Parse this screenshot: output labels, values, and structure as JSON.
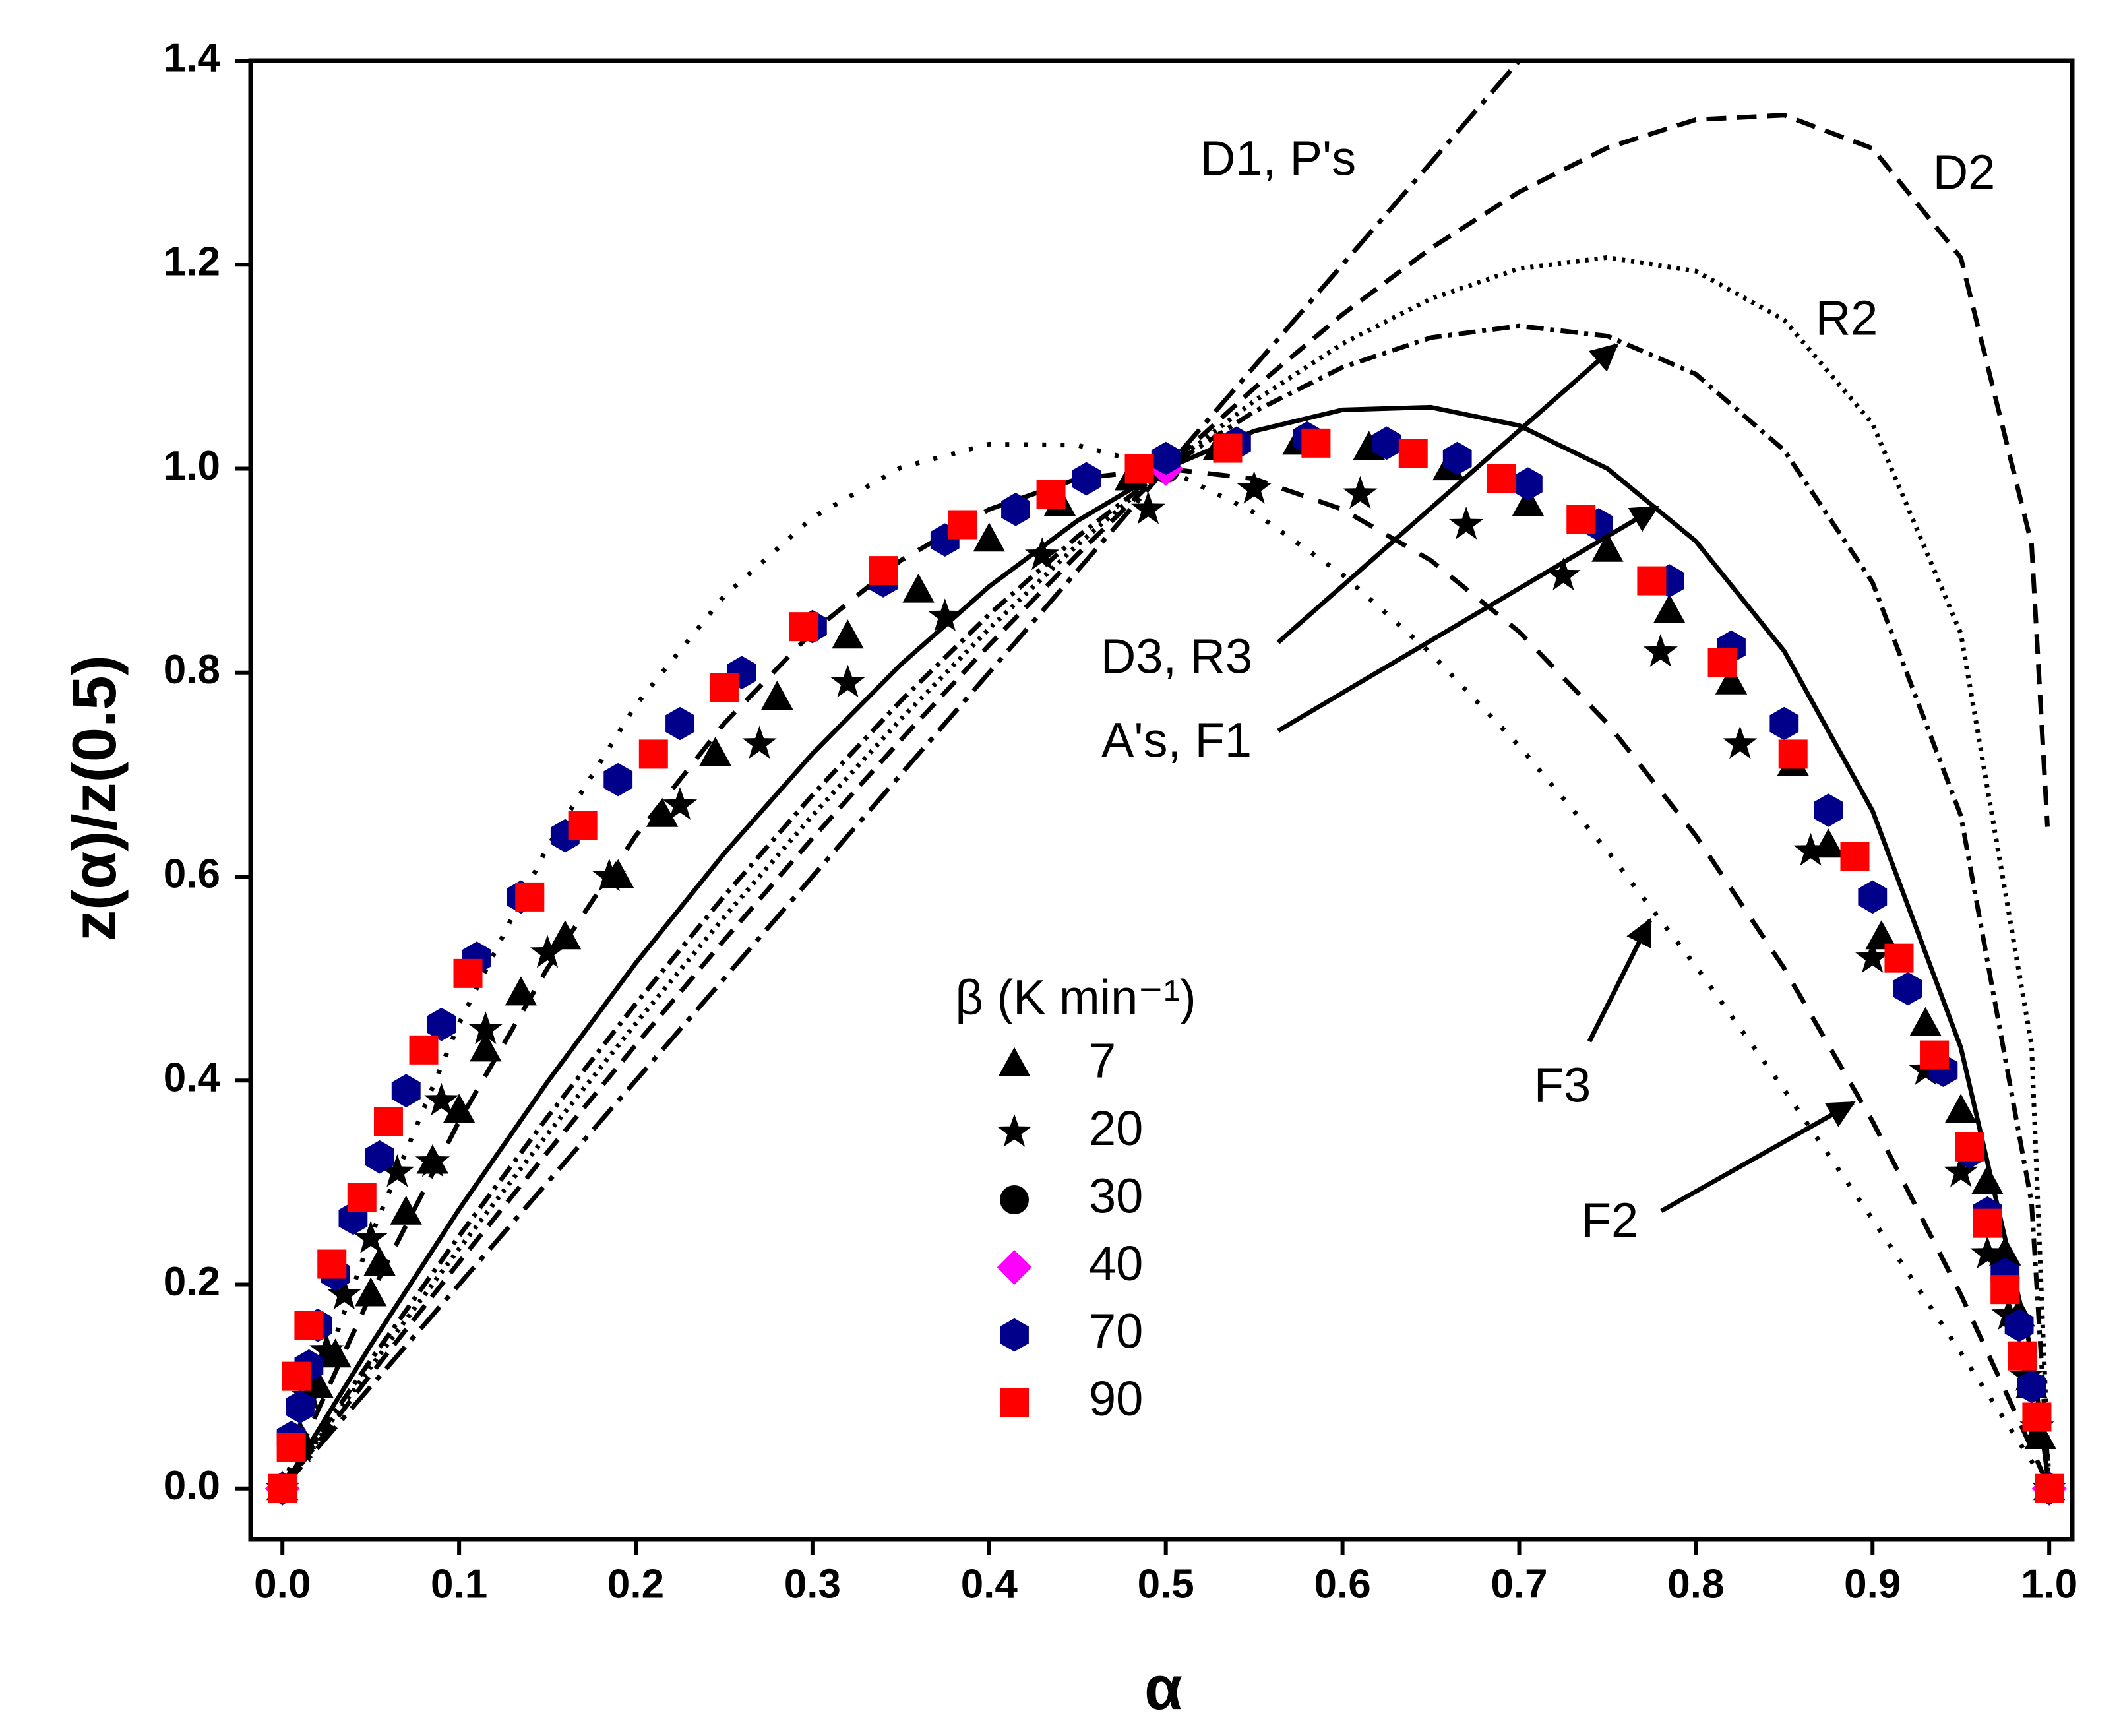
{
  "chart_data": {
    "type": "scatter",
    "xlabel": "α",
    "ylabel": "z(α)/z(0.5)",
    "legend_title": "β (K min⁻¹)",
    "xlim": [
      -0.018,
      1.013
    ],
    "ylim": [
      -0.05,
      1.4
    ],
    "xticks": [
      {
        "value": 0,
        "label": "0.0"
      },
      0.1,
      0.2,
      0.3,
      0.4,
      0.5,
      0.6,
      0.7,
      0.8,
      0.9,
      {
        "value": 1,
        "label": "1.0"
      }
    ],
    "yticks": [
      {
        "value": 0,
        "label": "0.0"
      },
      0.2,
      0.4,
      0.6,
      0.8,
      {
        "value": 1,
        "label": "1.0"
      },
      1.2,
      1.4
    ],
    "series": [
      {
        "name": "7",
        "color": "#000000",
        "marker": "triangle",
        "x": [
          0,
          0.01,
          0.02,
          0.03,
          0.05,
          0.055,
          0.07,
          0.085,
          0.1,
          0.115,
          0.135,
          0.16,
          0.19,
          0.215,
          0.245,
          0.28,
          0.32,
          0.36,
          0.4,
          0.44,
          0.48,
          0.53,
          0.575,
          0.615,
          0.66,
          0.705,
          0.75,
          0.785,
          0.82,
          0.855,
          0.875,
          0.905,
          0.93,
          0.95,
          0.965,
          0.975,
          0.983,
          0.99,
          0.995,
          1
        ],
        "values": [
          0,
          0.05,
          0.1,
          0.13,
          0.19,
          0.22,
          0.27,
          0.32,
          0.37,
          0.43,
          0.485,
          0.54,
          0.6,
          0.66,
          0.72,
          0.775,
          0.835,
          0.88,
          0.93,
          0.965,
          0.99,
          1.02,
          1.025,
          1.02,
          1.0,
          0.965,
          0.92,
          0.86,
          0.79,
          0.71,
          0.63,
          0.54,
          0.455,
          0.37,
          0.3,
          0.23,
          0.17,
          0.1,
          0.05,
          0
        ]
      },
      {
        "name": "20",
        "color": "#000000",
        "marker": "star",
        "x": [
          0,
          0.01,
          0.015,
          0.025,
          0.035,
          0.05,
          0.065,
          0.085,
          0.09,
          0.115,
          0.15,
          0.185,
          0.225,
          0.27,
          0.32,
          0.375,
          0.43,
          0.49,
          0.55,
          0.61,
          0.67,
          0.725,
          0.78,
          0.825,
          0.865,
          0.9,
          0.93,
          0.95,
          0.965,
          0.977,
          0.987,
          0.993,
          1
        ],
        "values": [
          0,
          0.04,
          0.09,
          0.135,
          0.19,
          0.245,
          0.31,
          0.32,
          0.38,
          0.45,
          0.525,
          0.6,
          0.67,
          0.73,
          0.79,
          0.855,
          0.915,
          0.96,
          0.98,
          0.975,
          0.945,
          0.895,
          0.82,
          0.73,
          0.625,
          0.52,
          0.41,
          0.31,
          0.23,
          0.17,
          0.11,
          0.06,
          0
        ]
      },
      {
        "name": "30",
        "color": "#000000",
        "marker": "circle",
        "x": [
          0,
          0.5,
          1
        ],
        "values": [
          0,
          1,
          0
        ]
      },
      {
        "name": "40",
        "color": "#ff00ff",
        "marker": "diamond",
        "x": [
          0,
          0.5,
          1
        ],
        "values": [
          0,
          1,
          0
        ]
      },
      {
        "name": "70",
        "color": "#00008b",
        "marker": "hexagon",
        "x": [
          0,
          0.005,
          0.01,
          0.015,
          0.02,
          0.03,
          0.04,
          0.055,
          0.07,
          0.09,
          0.11,
          0.135,
          0.16,
          0.19,
          0.225,
          0.26,
          0.3,
          0.34,
          0.375,
          0.415,
          0.455,
          0.5,
          0.54,
          0.58,
          0.625,
          0.665,
          0.705,
          0.745,
          0.785,
          0.82,
          0.85,
          0.875,
          0.9,
          0.92,
          0.94,
          0.955,
          0.965,
          0.975,
          0.983,
          0.99,
          1
        ],
        "values": [
          0,
          0.05,
          0.08,
          0.12,
          0.16,
          0.21,
          0.265,
          0.325,
          0.39,
          0.455,
          0.52,
          0.58,
          0.64,
          0.695,
          0.75,
          0.8,
          0.845,
          0.89,
          0.93,
          0.96,
          0.99,
          1.01,
          1.025,
          1.03,
          1.025,
          1.01,
          0.985,
          0.945,
          0.89,
          0.825,
          0.75,
          0.665,
          0.58,
          0.49,
          0.41,
          0.33,
          0.27,
          0.21,
          0.16,
          0.1,
          0
        ]
      },
      {
        "name": "90",
        "color": "#ff0000",
        "marker": "square",
        "x": [
          0,
          0.005,
          0.008,
          0.015,
          0.028,
          0.045,
          0.06,
          0.08,
          0.105,
          0.14,
          0.17,
          0.21,
          0.25,
          0.295,
          0.34,
          0.385,
          0.435,
          0.485,
          0.535,
          0.585,
          0.64,
          0.69,
          0.735,
          0.775,
          0.815,
          0.855,
          0.89,
          0.915,
          0.935,
          0.955,
          0.965,
          0.975,
          0.985,
          0.993,
          1
        ],
        "values": [
          0,
          0.04,
          0.11,
          0.16,
          0.22,
          0.285,
          0.36,
          0.43,
          0.505,
          0.58,
          0.65,
          0.72,
          0.785,
          0.845,
          0.9,
          0.945,
          0.975,
          1.0,
          1.02,
          1.025,
          1.015,
          0.99,
          0.95,
          0.89,
          0.81,
          0.72,
          0.62,
          0.52,
          0.425,
          0.335,
          0.26,
          0.195,
          0.13,
          0.07,
          0
        ]
      }
    ],
    "curves": [
      {
        "label": "D1, P's",
        "color": "#000000",
        "dash": "44 14 8 14",
        "x": [
          0,
          0.7
        ],
        "values": [
          0,
          1.4
        ]
      },
      {
        "label": "D2",
        "color": "#000000",
        "dash": "30 16",
        "x": [
          0,
          0.05,
          0.1,
          0.15,
          0.2,
          0.25,
          0.3,
          0.35,
          0.4,
          0.45,
          0.5,
          0.55,
          0.6,
          0.65,
          0.7,
          0.75,
          0.8,
          0.85,
          0.9,
          0.95,
          0.99,
          0.999
        ],
        "values": [
          0,
          0.1119,
          0.2219,
          0.3297,
          0.435,
          0.5377,
          0.6375,
          0.734,
          0.827,
          0.9158,
          1,
          1.0788,
          1.1512,
          1.216,
          1.2713,
          1.3147,
          1.3421,
          1.3465,
          1.314,
          1.2068,
          0.926,
          0.6488
        ]
      },
      {
        "label": "R2",
        "color": "#000000",
        "dash": "5 9",
        "x": [
          0,
          0.05,
          0.1,
          0.15,
          0.2,
          0.25,
          0.3,
          0.35,
          0.4,
          0.45,
          0.5,
          0.55,
          0.6,
          0.65,
          0.7,
          0.75,
          0.8,
          0.85,
          0.9,
          0.95,
          0.99,
          1
        ],
        "values": [
          0,
          0.1192,
          0.2351,
          0.3474,
          0.4559,
          0.5602,
          0.6598,
          0.7543,
          0.843,
          0.9252,
          1,
          1.0662,
          1.1224,
          1.1666,
          1.1961,
          1.2071,
          1.1936,
          1.1458,
          1.044,
          0.8382,
          0.4346,
          0
        ]
      },
      {
        "label": "D3, R3",
        "color": "#000000",
        "dash": "26 10 6 10",
        "x": [
          0,
          0.05,
          0.1,
          0.15,
          0.2,
          0.25,
          0.3,
          0.35,
          0.4,
          0.45,
          0.5,
          0.55,
          0.6,
          0.65,
          0.7,
          0.75,
          0.8,
          0.85,
          0.9,
          0.95,
          0.99,
          1
        ],
        "values": [
          0,
          0.126,
          0.2475,
          0.3641,
          0.4753,
          0.5808,
          0.68,
          0.7723,
          0.857,
          0.9333,
          1,
          1.0559,
          1.0994,
          1.1284,
          1.1399,
          1.13,
          1.0926,
          1.018,
          0.8883,
          0.6596,
          0.2802,
          0
        ]
      },
      {
        "label": "A's, F1",
        "color": "#000000",
        "dash": "none",
        "x": [
          0,
          0.05,
          0.1,
          0.15,
          0.2,
          0.25,
          0.3,
          0.35,
          0.4,
          0.45,
          0.5,
          0.55,
          0.6,
          0.65,
          0.7,
          0.75,
          0.8,
          0.85,
          0.9,
          0.95,
          0.99,
          1
        ],
        "values": [
          0,
          0.1406,
          0.2736,
          0.3986,
          0.5151,
          0.6226,
          0.7204,
          0.8079,
          0.8844,
          0.9488,
          1,
          1.0368,
          1.0576,
          1.0602,
          1.0422,
          1.0,
          0.9288,
          0.8211,
          0.6644,
          0.4322,
          0.1329,
          0
        ]
      },
      {
        "label": "F3",
        "color": "#000000",
        "dash": "6 22",
        "x": [
          0,
          0.05,
          0.1,
          0.15,
          0.2,
          0.25,
          0.3,
          0.35,
          0.4,
          0.45,
          0.5,
          0.55,
          0.6,
          0.65,
          0.7,
          0.75,
          0.8,
          0.85,
          0.9,
          0.95,
          0.99,
          1
        ],
        "values": [
          0,
          0.247,
          0.456,
          0.629,
          0.768,
          0.875,
          0.952,
          1.001,
          1.024,
          1.023,
          1,
          0.957,
          0.896,
          0.819,
          0.728,
          0.625,
          0.512,
          0.391,
          0.264,
          0.133,
          0.0267,
          0
        ]
      },
      {
        "label": "F2",
        "color": "#000000",
        "dash": "34 24",
        "x": [
          0,
          0.05,
          0.1,
          0.15,
          0.2,
          0.25,
          0.3,
          0.35,
          0.4,
          0.45,
          0.5,
          0.55,
          0.6,
          0.65,
          0.7,
          0.75,
          0.8,
          0.85,
          0.9,
          0.95,
          0.99,
          1
        ],
        "values": [
          0,
          0.19,
          0.36,
          0.51,
          0.64,
          0.75,
          0.84,
          0.91,
          0.96,
          0.99,
          1,
          0.99,
          0.96,
          0.91,
          0.84,
          0.75,
          0.64,
          0.51,
          0.36,
          0.19,
          0.0396,
          0
        ]
      }
    ]
  }
}
